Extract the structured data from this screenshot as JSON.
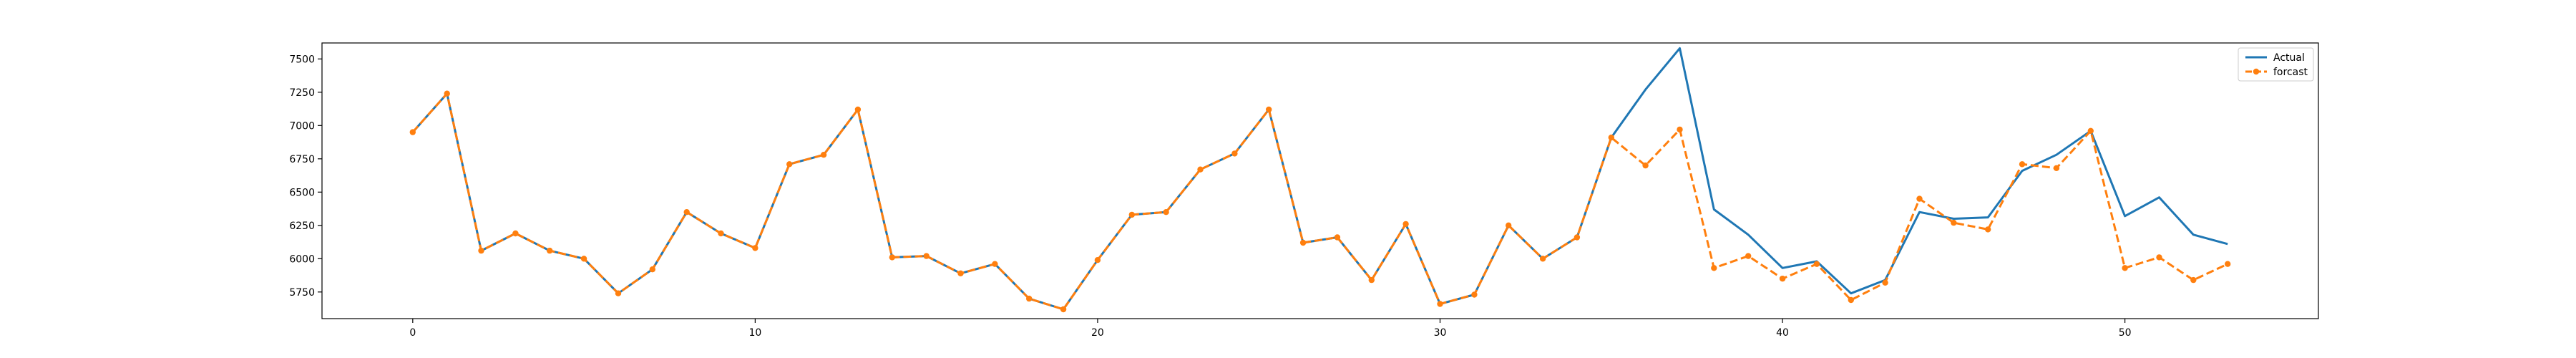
{
  "chart_data": {
    "type": "line",
    "title": "",
    "xlabel": "",
    "ylabel": "",
    "xlim": [
      -2.65,
      55.65
    ],
    "ylim": [
      5550,
      7620
    ],
    "x_ticks": [
      0,
      10,
      20,
      30,
      40,
      50
    ],
    "y_ticks": [
      5750,
      6000,
      6250,
      6500,
      6750,
      7000,
      7250,
      7500
    ],
    "grid": false,
    "legend_position": "top-right",
    "series": [
      {
        "name": "Actual",
        "color": "#1f77b4",
        "style": "solid",
        "marker": "none",
        "x": [
          0,
          1,
          2,
          3,
          4,
          5,
          6,
          7,
          8,
          9,
          10,
          11,
          12,
          13,
          14,
          15,
          16,
          17,
          18,
          19,
          20,
          21,
          22,
          23,
          24,
          25,
          26,
          27,
          28,
          29,
          30,
          31,
          32,
          33,
          34,
          35,
          36,
          37,
          38,
          39,
          40,
          41,
          42,
          43,
          44,
          45,
          46,
          47,
          48,
          49,
          50,
          51,
          52,
          53
        ],
        "values": [
          6950,
          7240,
          6060,
          6190,
          6060,
          6000,
          5740,
          5920,
          6350,
          6190,
          6080,
          6710,
          6780,
          7120,
          6010,
          6020,
          5890,
          5960,
          5700,
          5620,
          5990,
          6330,
          6350,
          6670,
          6790,
          7120,
          6120,
          6160,
          5840,
          6260,
          5660,
          5730,
          6250,
          6000,
          6160,
          6910,
          7270,
          7580,
          6370,
          6180,
          5930,
          5980,
          5740,
          5840,
          6350,
          6300,
          6310,
          6660,
          6780,
          6960,
          6320,
          6460,
          6180,
          6110
        ]
      },
      {
        "name": "forcast",
        "color": "#ff7f0e",
        "style": "dashed",
        "marker": "circle",
        "x": [
          0,
          1,
          2,
          3,
          4,
          5,
          6,
          7,
          8,
          9,
          10,
          11,
          12,
          13,
          14,
          15,
          16,
          17,
          18,
          19,
          20,
          21,
          22,
          23,
          24,
          25,
          26,
          27,
          28,
          29,
          30,
          31,
          32,
          33,
          34,
          35,
          36,
          37,
          38,
          39,
          40,
          41,
          42,
          43,
          44,
          45,
          46,
          47,
          48,
          49,
          50,
          51,
          52,
          53
        ],
        "values": [
          6950,
          7240,
          6060,
          6190,
          6060,
          6000,
          5740,
          5920,
          6350,
          6190,
          6080,
          6710,
          6780,
          7120,
          6010,
          6020,
          5890,
          5960,
          5700,
          5620,
          5990,
          6330,
          6350,
          6670,
          6790,
          7120,
          6120,
          6160,
          5840,
          6260,
          5660,
          5730,
          6250,
          6000,
          6160,
          6910,
          6700,
          6970,
          5930,
          6020,
          5850,
          5960,
          5690,
          5820,
          6450,
          6270,
          6220,
          6710,
          6680,
          6960,
          5930,
          6010,
          5840,
          5960
        ]
      }
    ]
  }
}
